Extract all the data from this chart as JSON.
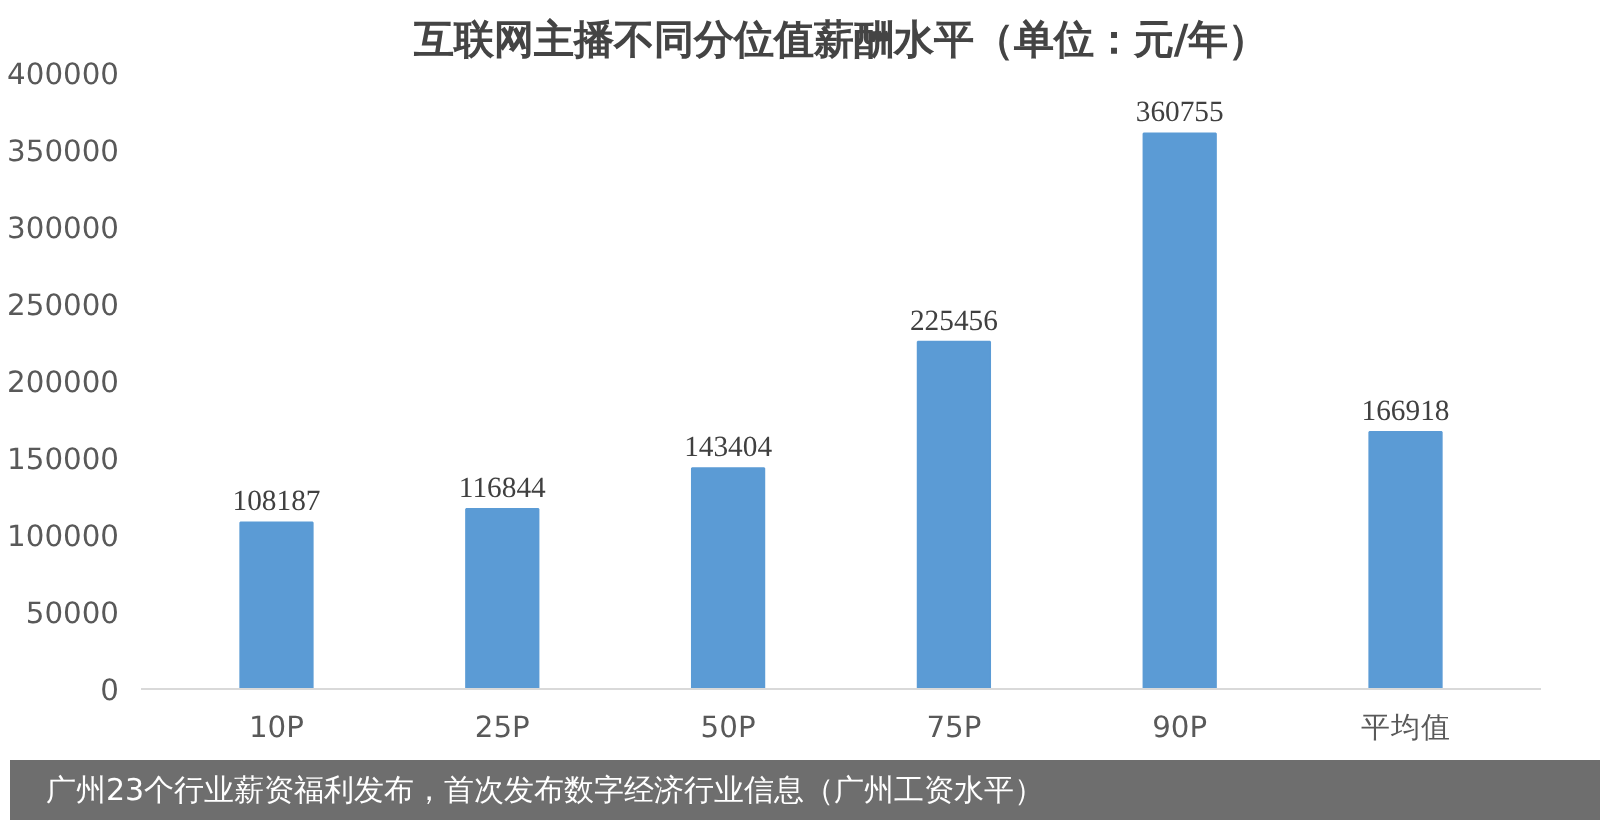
{
  "chart_data": {
    "type": "bar",
    "title": "互联网主播不同分位值薪酬水平（单位：元/年）",
    "categories": [
      "10P",
      "25P",
      "50P",
      "75P",
      "90P",
      "平均值"
    ],
    "values": [
      108187,
      116844,
      143404,
      225456,
      360755,
      166918
    ],
    "color": "#5b9bd5",
    "ylim": [
      0,
      400000
    ],
    "yticks": [
      0,
      50000,
      100000,
      150000,
      200000,
      250000,
      300000,
      350000,
      400000
    ],
    "grid": false,
    "data_labels": true,
    "annotations": [
      "广州23个行业薪资福利发布，首次发布数字经济行业信息（广州工资水平）"
    ]
  }
}
